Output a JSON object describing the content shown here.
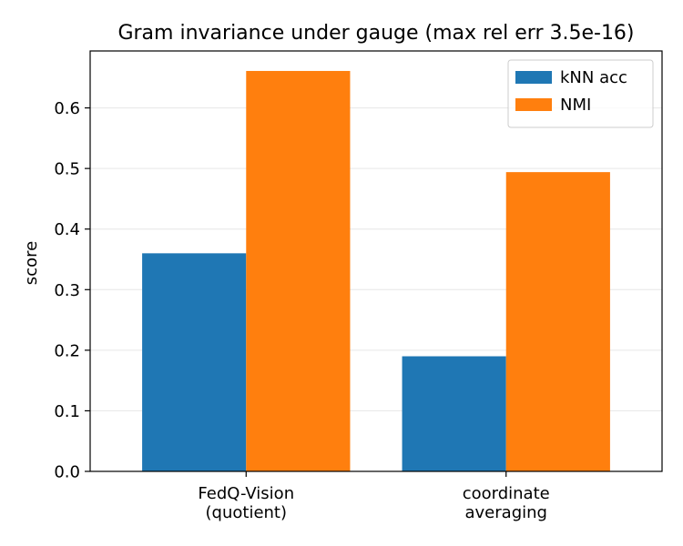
{
  "chart_data": {
    "type": "bar",
    "title": "Gram invariance under gauge (max rel err 3.5e-16)",
    "xlabel": "",
    "ylabel": "score",
    "categories": [
      [
        "FedQ-Vision",
        "(quotient)"
      ],
      [
        "coordinate",
        "averaging"
      ]
    ],
    "series": [
      {
        "name": "kNN acc",
        "color": "#1f77b4",
        "values": [
          0.36,
          0.19
        ]
      },
      {
        "name": "NMI",
        "color": "#ff7f0e",
        "values": [
          0.661,
          0.494
        ]
      }
    ],
    "ylim": [
      0,
      0.694
    ],
    "yticks": [
      0.0,
      0.1,
      0.2,
      0.3,
      0.4,
      0.5,
      0.6
    ],
    "ytick_labels": [
      "0.0",
      "0.1",
      "0.2",
      "0.3",
      "0.4",
      "0.5",
      "0.6"
    ],
    "grid": "y",
    "legend_position": "upper-right"
  }
}
